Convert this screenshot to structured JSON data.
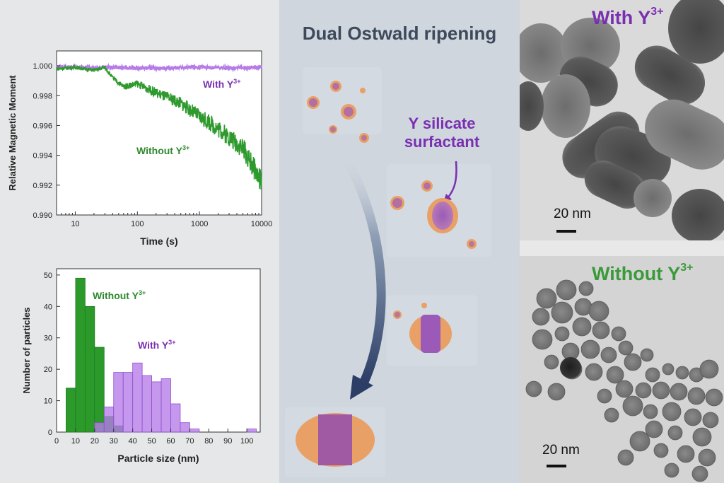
{
  "chart_data": [
    {
      "type": "line",
      "title": "",
      "xlabel": "Time (s)",
      "ylabel": "Relative Magnetic Moment",
      "xscale": "log",
      "xlim": [
        5,
        10000
      ],
      "ylim": [
        0.99,
        1.001
      ],
      "xticks": [
        "10",
        "100",
        "1000",
        "10000"
      ],
      "yticks": [
        "0.990",
        "0.992",
        "0.994",
        "0.996",
        "0.998",
        "1.000"
      ],
      "series": [
        {
          "name": "With Y3+",
          "label": "With Y",
          "sup": "3+",
          "color": "#b57be8",
          "x": [
            5,
            10,
            30,
            100,
            300,
            1000,
            3000,
            10000
          ],
          "y": [
            0.99995,
            0.9999,
            0.9999,
            0.99985,
            0.99985,
            0.9999,
            0.99985,
            0.9999
          ]
        },
        {
          "name": "Without Y3+",
          "label": "Without Y",
          "sup": "3+",
          "color": "#2e9a2e",
          "x": [
            5,
            10,
            20,
            30,
            40,
            60,
            100,
            200,
            500,
            1000,
            2000,
            5000,
            10000
          ],
          "y": [
            0.9998,
            0.9999,
            0.9997,
            0.9999,
            0.9992,
            0.9986,
            0.9988,
            0.9982,
            0.9975,
            0.9966,
            0.9958,
            0.9945,
            0.9922
          ]
        }
      ]
    },
    {
      "type": "bar",
      "title": "",
      "xlabel": "Particle size (nm)",
      "ylabel": "Number of particles",
      "xlim": [
        0,
        107
      ],
      "ylim": [
        0,
        52
      ],
      "xticks": [
        "0",
        "10",
        "20",
        "30",
        "40",
        "50",
        "60",
        "70",
        "80",
        "90",
        "100"
      ],
      "yticks": [
        "0",
        "10",
        "20",
        "30",
        "40",
        "50"
      ],
      "bin_width": 5,
      "series": [
        {
          "name": "Without Y3+",
          "label": "Without Y",
          "sup": "3+",
          "color": "#2b9a2b",
          "bin_starts": [
            5,
            10,
            15,
            20,
            25,
            30
          ],
          "values": [
            14,
            49,
            40,
            27,
            5,
            2
          ]
        },
        {
          "name": "With Y3+",
          "label": "With Y",
          "sup": "3+",
          "color": "#b57be8",
          "bin_starts": [
            20,
            25,
            30,
            35,
            40,
            45,
            50,
            55,
            60,
            65,
            70,
            100
          ],
          "values": [
            3,
            8,
            19,
            19,
            22,
            18,
            16,
            17,
            9,
            3,
            1,
            1
          ]
        }
      ]
    }
  ],
  "schematic": {
    "title": "Dual Ostwald ripening",
    "annotation_line1": "Y silicate",
    "annotation_line2": "surfactant"
  },
  "micrographs": {
    "top": {
      "label": "With Y",
      "sup": "3+",
      "scale": "20 nm"
    },
    "bottom": {
      "label": "Without Y",
      "sup": "3+",
      "scale": "20 nm"
    }
  },
  "colors": {
    "purple": "#7a2fb0",
    "green": "#3a9a3a",
    "title": "#3d4a5c",
    "orange": "#e9a066"
  }
}
